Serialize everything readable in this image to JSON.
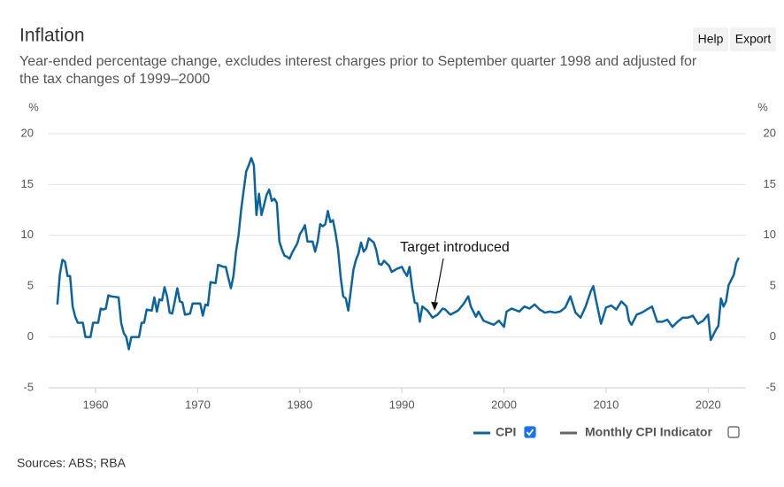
{
  "chart_data": {
    "type": "line",
    "title": "Inflation",
    "subtitle": [
      "Year-ended percentage change, excludes interest charges prior to September quarter 1998 and adjusted for",
      "the tax changes of 1999–2000"
    ],
    "ylabel": "%",
    "buttons": [
      "Help",
      "Export"
    ],
    "source": "Sources: ABS; RBA",
    "annotation": {
      "text": "Target introduced",
      "x": 1993.2,
      "y": 2.6
    },
    "xlim": [
      1955.4,
      2023.7
    ],
    "xticks": [
      1960,
      1970,
      1980,
      1990,
      2000,
      2010,
      2020
    ],
    "ylim": [
      -5,
      20
    ],
    "yticks": [
      20,
      15,
      10,
      5,
      0,
      -5
    ],
    "grid": true,
    "x": [
      1956.25,
      1956.5,
      1956.75,
      1957,
      1957.25,
      1957.5,
      1957.75,
      1958,
      1958.25,
      1958.75,
      1959,
      1959.5,
      1959.75,
      1960.25,
      1960.5,
      1960.75,
      1961,
      1961.25,
      1961.5,
      1962.25,
      1962.5,
      1962.75,
      1963,
      1963.25,
      1963.5,
      1964.25,
      1964.5,
      1964.75,
      1965,
      1965.5,
      1965.75,
      1966,
      1966.25,
      1966.5,
      1966.75,
      1967,
      1967.25,
      1967.5,
      1967.75,
      1968,
      1968.25,
      1968.5,
      1968.75,
      1969.25,
      1969.5,
      1970.25,
      1970.5,
      1970.75,
      1971,
      1971.25,
      1971.75,
      1972,
      1972.5,
      1972.75,
      1973,
      1973.25,
      1973.5,
      1973.75,
      1974,
      1974.25,
      1974.5,
      1974.75,
      1975,
      1975.25,
      1975.5,
      1975.75,
      1976,
      1976.25,
      1976.5,
      1976.75,
      1977,
      1977.25,
      1977.5,
      1977.75,
      1978,
      1978.25,
      1978.5,
      1978.75,
      1979,
      1979.25,
      1979.75,
      1980,
      1980.25,
      1980.5,
      1980.75,
      1981.25,
      1981.5,
      1981.75,
      1982,
      1982.25,
      1982.5,
      1982.75,
      1983,
      1983.25,
      1983.5,
      1983.75,
      1984,
      1984.25,
      1984.5,
      1984.75,
      1985.25,
      1985.5,
      1985.75,
      1986,
      1986.25,
      1986.5,
      1986.75,
      1987.25,
      1987.5,
      1987.75,
      1988,
      1988.25,
      1988.75,
      1989,
      1989.5,
      1990,
      1990.25,
      1990.5,
      1990.75,
      1991,
      1991.25,
      1991.5,
      1991.75,
      1992,
      1992.5,
      1993,
      1993.5,
      1994,
      1994.25,
      1994.75,
      1995.5,
      1996,
      1996.5,
      1996.75,
      1997.25,
      1997.5,
      1998,
      1998.5,
      1999,
      1999.5,
      2000,
      2000.25,
      2000.75,
      2001.5,
      2002,
      2002.5,
      2003,
      2003.5,
      2004,
      2004.5,
      2005,
      2005.5,
      2006,
      2006.5,
      2007,
      2007.5,
      2008,
      2008.5,
      2008.75,
      2009,
      2009.5,
      2009.75,
      2010,
      2010.5,
      2011,
      2011.5,
      2012,
      2012.25,
      2012.5,
      2013,
      2013.5,
      2014,
      2014.5,
      2015,
      2015.5,
      2016,
      2016.5,
      2017,
      2017.5,
      2018,
      2018.5,
      2019,
      2019.5,
      2020,
      2020.25,
      2020.75,
      2021,
      2021.25,
      2021.5,
      2021.75,
      2022,
      2022.5,
      2022.75,
      2023
    ],
    "series": [
      {
        "name": "CPI",
        "color": "#0b64a0",
        "visible": true,
        "values": [
          3.2,
          6.2,
          7.6,
          7.4,
          6.0,
          6.0,
          3.0,
          2.0,
          1.4,
          1.4,
          0.0,
          0.0,
          1.4,
          1.4,
          2.8,
          2.7,
          2.8,
          4.1,
          4.0,
          3.9,
          1.4,
          0.4,
          0.0,
          -1.2,
          0.0,
          0.0,
          1.4,
          1.4,
          2.7,
          2.6,
          3.9,
          2.5,
          3.7,
          3.6,
          4.9,
          4.0,
          2.4,
          2.3,
          3.5,
          4.8,
          3.5,
          3.4,
          2.2,
          2.3,
          3.3,
          3.3,
          2.1,
          3.2,
          3.1,
          5.4,
          5.3,
          7.1,
          6.9,
          6.9,
          5.8,
          4.8,
          6.0,
          8.4,
          10.0,
          12.5,
          14.4,
          16.3,
          16.9,
          17.6,
          16.9,
          12.0,
          14.1,
          12.0,
          13.0,
          14.0,
          14.5,
          13.4,
          13.6,
          13.2,
          9.4,
          8.6,
          8.0,
          7.9,
          7.7,
          8.3,
          9.2,
          10.1,
          10.5,
          11.0,
          9.4,
          9.4,
          8.4,
          9.4,
          11.1,
          10.9,
          11.1,
          12.4,
          11.3,
          11.5,
          10.2,
          8.6,
          5.9,
          4.0,
          3.8,
          2.6,
          6.6,
          7.6,
          8.2,
          9.3,
          8.4,
          8.7,
          9.7,
          9.3,
          8.5,
          7.2,
          7.1,
          7.5,
          7.0,
          6.4,
          6.7,
          6.9,
          6.4,
          6.0,
          6.9,
          4.9,
          3.4,
          3.3,
          1.5,
          3.0,
          2.6,
          1.9,
          2.2,
          2.8,
          2.7,
          2.2,
          2.6,
          3.2,
          4.0,
          3.0,
          2.0,
          2.5,
          1.6,
          1.4,
          1.2,
          1.6,
          1.0,
          2.5,
          2.8,
          2.5,
          3.0,
          2.8,
          3.2,
          2.7,
          2.4,
          2.5,
          2.4,
          2.5,
          2.9,
          4.0,
          2.4,
          1.9,
          3.0,
          4.5,
          5.0,
          3.7,
          1.3,
          2.1,
          2.9,
          3.1,
          2.7,
          3.5,
          3.0,
          1.6,
          1.2,
          2.2,
          2.4,
          2.7,
          3.0,
          1.5,
          1.5,
          1.7,
          1.0,
          1.5,
          1.9,
          1.9,
          2.1,
          1.3,
          1.6,
          2.2,
          -0.3,
          0.7,
          1.1,
          3.8,
          3.0,
          3.5,
          5.1,
          6.1,
          7.3,
          7.8
        ]
      },
      {
        "name": "Monthly CPI Indicator",
        "color": "#666666",
        "visible": false
      }
    ]
  }
}
